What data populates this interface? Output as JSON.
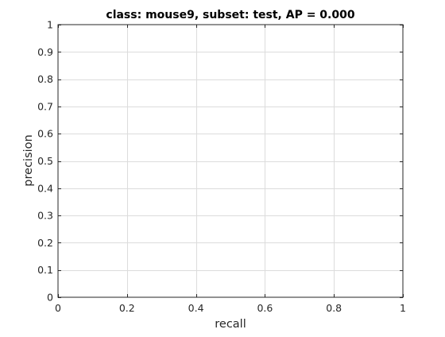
{
  "chart_data": {
    "type": "line",
    "title": "class: mouse9, subset: test, AP = 0.000",
    "xlabel": "recall",
    "ylabel": "precision",
    "xlim": [
      0,
      1
    ],
    "ylim": [
      0,
      1
    ],
    "grid": true,
    "xticks": [
      0,
      0.2,
      0.4,
      0.6,
      0.8,
      1
    ],
    "xtick_labels": [
      "0",
      "0.2",
      "0.4",
      "0.6",
      "0.8",
      "1"
    ],
    "yticks": [
      0,
      0.1,
      0.2,
      0.3,
      0.4,
      0.5,
      0.6,
      0.7,
      0.8,
      0.9,
      1
    ],
    "ytick_labels": [
      "0",
      "0.1",
      "0.2",
      "0.3",
      "0.4",
      "0.5",
      "0.6",
      "0.7",
      "0.8",
      "0.9",
      "1"
    ],
    "series": [],
    "colors": {
      "axis": "#262626",
      "grid": "#dcdcdc",
      "background": "#ffffff"
    }
  }
}
